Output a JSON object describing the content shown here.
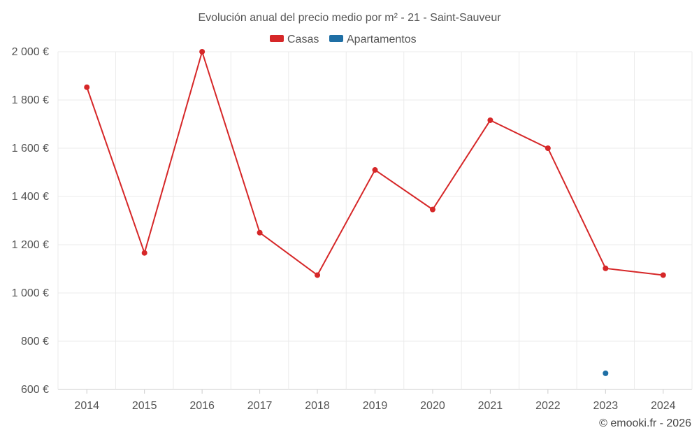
{
  "chart_data": {
    "type": "line",
    "title": "Evolución anual del precio medio por m² - 21 - Saint-Sauveur",
    "categories": [
      "2014",
      "2015",
      "2016",
      "2017",
      "2018",
      "2019",
      "2020",
      "2021",
      "2022",
      "2023",
      "2024"
    ],
    "series": [
      {
        "name": "Casas",
        "color": "#d62728",
        "values": [
          1853,
          1166,
          2000,
          1250,
          1074,
          1510,
          1346,
          1716,
          1600,
          1102,
          1074
        ]
      },
      {
        "name": "Apartamentos",
        "color": "#1f6fa5",
        "values": [
          null,
          null,
          null,
          null,
          null,
          null,
          null,
          null,
          null,
          667,
          null
        ]
      }
    ],
    "ylim": [
      600,
      2000
    ],
    "yticks": [
      600,
      800,
      1000,
      1200,
      1400,
      1600,
      1800,
      2000
    ],
    "ytick_labels": [
      "600 €",
      "800 €",
      "1 000 €",
      "1 200 €",
      "1 400 €",
      "1 600 €",
      "1 800 €",
      "2 000 €"
    ],
    "xlabel": "",
    "ylabel": "",
    "grid": true,
    "legend_position": "top-center"
  },
  "credit": "© emooki.fr - 2026"
}
